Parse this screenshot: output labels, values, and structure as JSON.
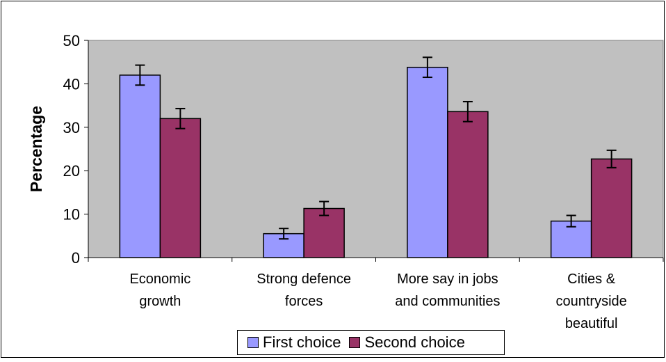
{
  "chart_data": {
    "type": "bar",
    "title": "",
    "ylabel": "Percentage",
    "xlabel": "",
    "ylim": [
      0,
      50
    ],
    "yticks": [
      0,
      10,
      20,
      30,
      40,
      50
    ],
    "categories": [
      [
        "Economic",
        "growth"
      ],
      [
        "Strong defence",
        "forces"
      ],
      [
        "More say in jobs",
        "and communities"
      ],
      [
        "Cities &",
        "countryside",
        "beautiful"
      ]
    ],
    "series": [
      {
        "name": "First choice",
        "color": "#9999ff",
        "values": [
          42,
          5.5,
          43.8,
          8.4
        ],
        "errors": [
          2.3,
          1.2,
          2.3,
          1.3
        ]
      },
      {
        "name": "Second choice",
        "color": "#993366",
        "values": [
          32,
          11.3,
          33.6,
          22.7
        ],
        "errors": [
          2.3,
          1.6,
          2.3,
          2.0
        ]
      }
    ],
    "plot_background": "#c0c0c0",
    "grid": false,
    "error_bars": true,
    "legend_position": "bottom"
  }
}
